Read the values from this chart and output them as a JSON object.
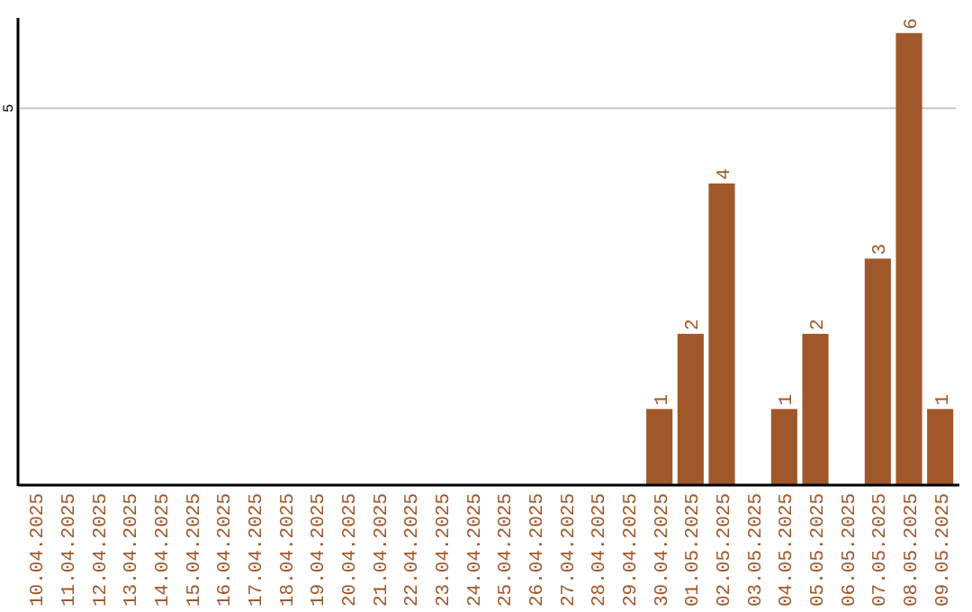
{
  "chart_data": {
    "type": "bar",
    "categories": [
      "10.04.2025",
      "11.04.2025",
      "12.04.2025",
      "13.04.2025",
      "14.04.2025",
      "15.04.2025",
      "16.04.2025",
      "17.04.2025",
      "18.04.2025",
      "19.04.2025",
      "20.04.2025",
      "21.04.2025",
      "22.04.2025",
      "23.04.2025",
      "24.04.2025",
      "25.04.2025",
      "26.04.2025",
      "27.04.2025",
      "28.04.2025",
      "29.04.2025",
      "30.04.2025",
      "01.05.2025",
      "02.05.2025",
      "03.05.2025",
      "04.05.2025",
      "05.05.2025",
      "06.05.2025",
      "07.05.2025",
      "08.05.2025",
      "09.05.2025"
    ],
    "values": [
      null,
      null,
      null,
      null,
      null,
      null,
      null,
      null,
      null,
      null,
      null,
      null,
      null,
      null,
      null,
      null,
      null,
      null,
      null,
      null,
      1,
      2,
      4,
      null,
      1,
      2,
      null,
      3,
      6,
      1
    ],
    "data_labels": true,
    "color": "#a0582a",
    "ylim": [
      0,
      6.2
    ],
    "ref_lines": [
      {
        "axis": "y",
        "value": 5,
        "label": "5",
        "color": "#c8c8c8"
      }
    ]
  }
}
